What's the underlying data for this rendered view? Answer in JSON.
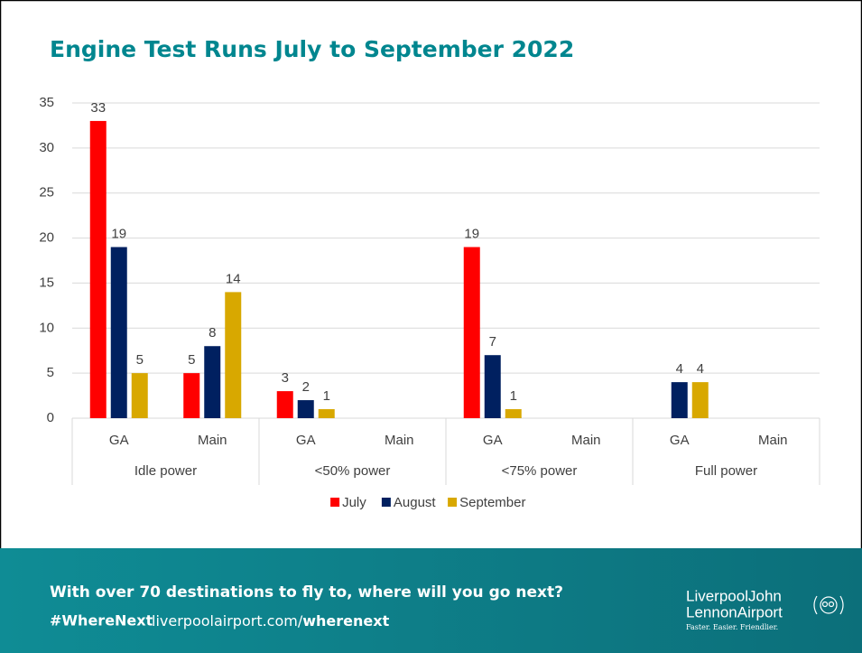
{
  "chart_data": {
    "type": "bar",
    "title": "Engine Test Runs July to September 2022",
    "categories": [
      "GA",
      "Main",
      "GA",
      "Main",
      "GA",
      "Main",
      "GA",
      "Main"
    ],
    "groups": [
      "Idle power",
      "<50% power",
      "<75% power",
      "Full power"
    ],
    "series": [
      {
        "name": "July",
        "color": "#ff0000",
        "values": [
          33,
          5,
          3,
          null,
          19,
          null,
          null,
          null
        ]
      },
      {
        "name": "August",
        "color": "#002060",
        "values": [
          19,
          8,
          2,
          null,
          7,
          null,
          4,
          null
        ]
      },
      {
        "name": "September",
        "color": "#d8a800",
        "values": [
          5,
          14,
          1,
          null,
          1,
          null,
          4,
          null
        ]
      }
    ],
    "ylim": [
      0,
      35
    ],
    "yticks": [
      0,
      5,
      10,
      15,
      20,
      25,
      30,
      35
    ],
    "grid": true,
    "legend": "bottom"
  },
  "footer": {
    "tagline": "With over 70 destinations to fly to, where will you go next?",
    "hashtag": "#WhereNext",
    "url_prefix": "liverpoolairport.com/",
    "url_suffix": "wherenext"
  },
  "logo": {
    "line1": "LiverpoolJohn",
    "line2": "LennonAirport",
    "slogan": "Faster. Easier. Friendlier."
  }
}
